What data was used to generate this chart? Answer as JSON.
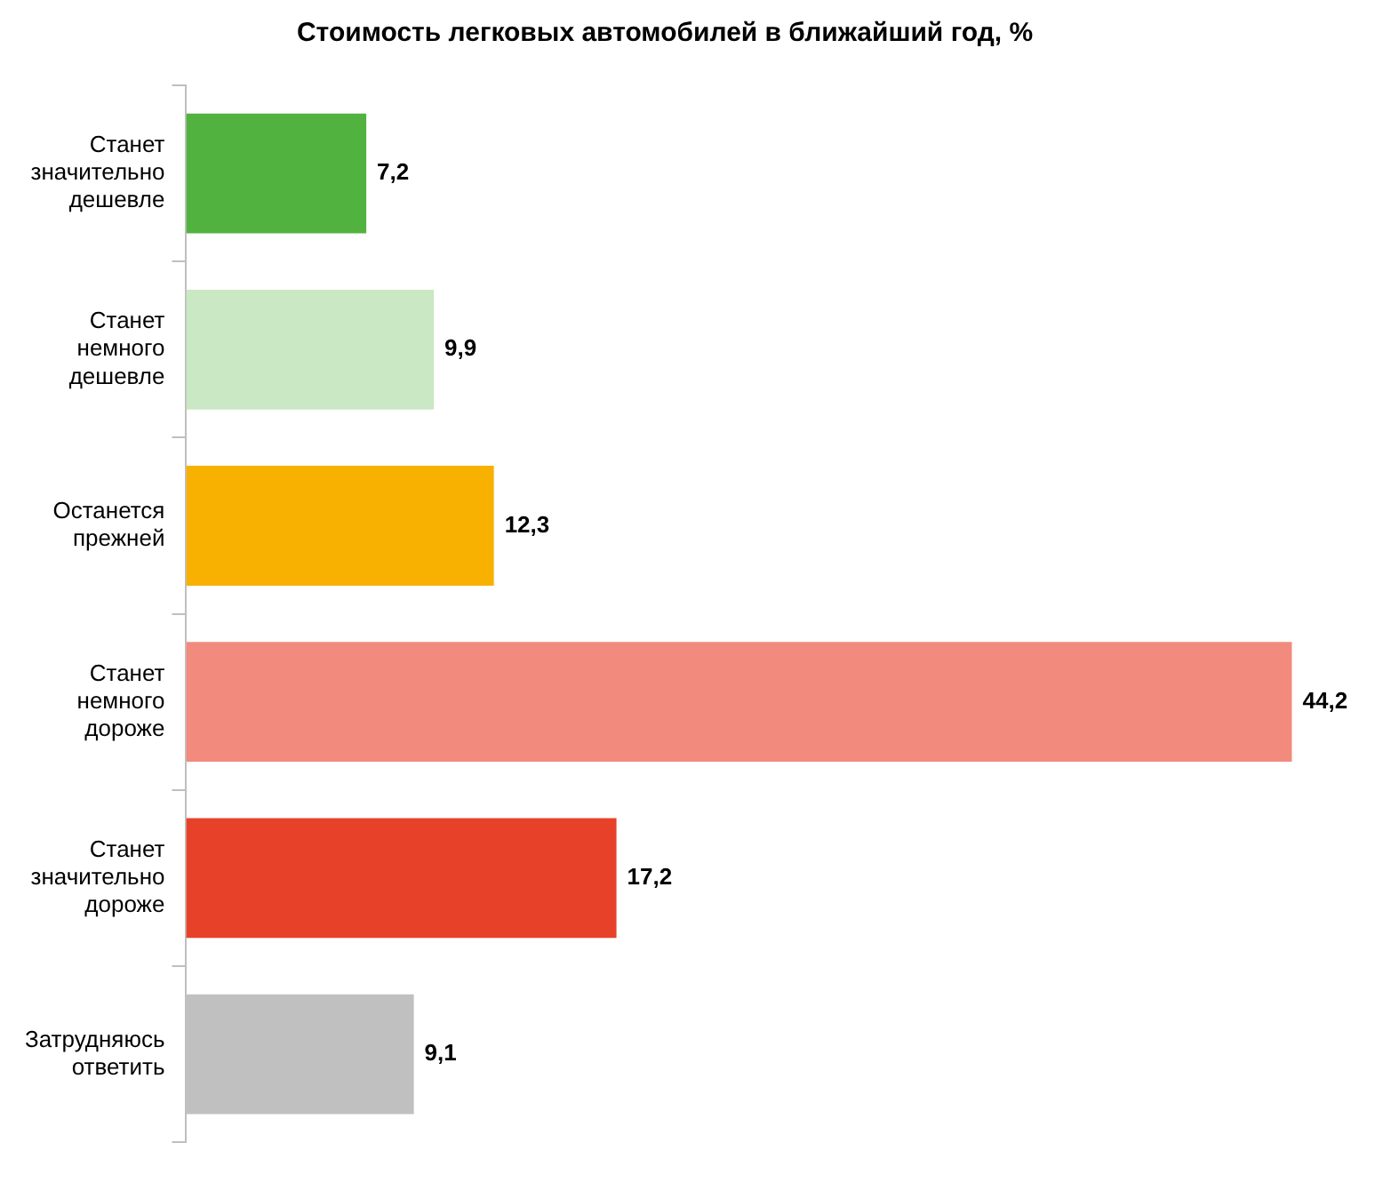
{
  "chart_data": {
    "type": "bar",
    "orientation": "horizontal",
    "title": "Стоимость легковых автомобилей в ближайший год, %",
    "categories": [
      "Станет значительно дешевле",
      "Станет немного дешевле",
      "Останется прежней",
      "Станет немного дороже",
      "Станет значительно дороже",
      "Затрудняюсь ответить"
    ],
    "values": [
      7.2,
      9.9,
      12.3,
      44.2,
      17.2,
      9.1
    ],
    "colors": [
      "#52b23f",
      "#c9e8c3",
      "#f8b100",
      "#f28b7d",
      "#e84129",
      "#c0c0c0"
    ],
    "value_labels": [
      "7,2",
      "9,9",
      "12,3",
      "44,2",
      "17,2",
      "9,1"
    ],
    "legend": false
  }
}
